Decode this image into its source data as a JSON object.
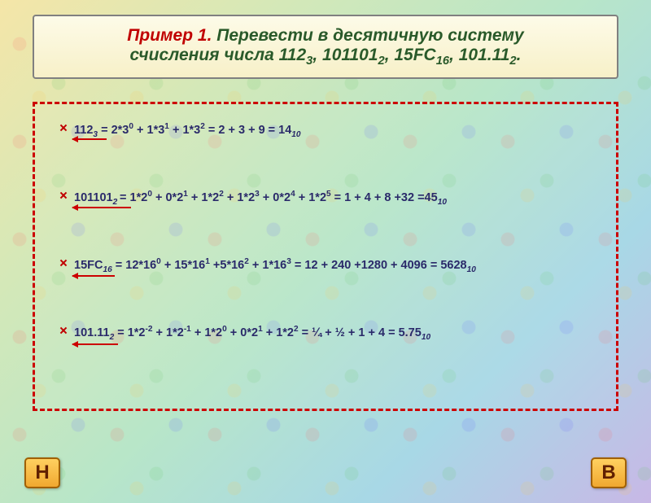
{
  "title": {
    "prefix": "Пример 1.",
    "rest_line1": "  Перевести  в  десятичную  систему",
    "rest_line2_a": "счисления числа 112",
    "s1": "3",
    "rest_line2_b": ", 101101",
    "s2": "2",
    "rest_line2_c": ", 15FC",
    "s3": "16",
    "rest_line2_d": ", 101.11",
    "s4": "2",
    "rest_line2_e": "."
  },
  "lines": {
    "l1": "112<sub>3</sub> = 2*3<sup>0</sup> + 1*3<sup>1</sup> + 1*3<sup>2</sup> = 2 + 3 + 9 = 14<sub>10</sub>",
    "l2": "101101<sub>2 </sub>= 1*2<sup>0</sup> + 0*2<sup>1</sup> + 1*2<sup>2</sup> + 1*2<sup>3</sup> + 0*2<sup>4</sup> + 1*2<sup>5</sup> = 1 + 4 + 8 +32 =45<sub>10</sub>",
    "l3": "15FC<sub>16</sub> = 12*16<sup>0</sup> + 15*16<sup>1</sup> +5*16<sup>2</sup> + 1*16<sup>3</sup> = 12 + 240 +1280 + 4096 = 5628<sub>10</sub>",
    "l4": "101.11<sub>2</sub> = 1*2<sup>-2</sup> + 1*2<sup>-1</sup> + 1*2<sup>0</sup> + 0*2<sup>1</sup> + 1*2<sup>2</sup> = ¼  + ½  + 1 + 4 = 5.75<sub>10</sub>"
  },
  "nav": {
    "back": "Н",
    "forward": "В"
  },
  "style": {
    "title_color_prefix": "#c00000",
    "title_color_rest": "#2a5a2a",
    "title_fontsize": 21,
    "body_text_color": "#2a2a6a",
    "body_fontsize": 14.5,
    "dashed_border_color": "#cc0000",
    "arrow_color": "#cc0000",
    "bullet_color": "#c00000",
    "navbtn_bg_from": "#ffd060",
    "navbtn_bg_to": "#f0a830",
    "navbtn_text_color": "#602000",
    "bg_gradient": [
      "#f5e6a8",
      "#d4e8b8",
      "#b8e6c8",
      "#a8d8e6",
      "#c8b8e6"
    ]
  }
}
